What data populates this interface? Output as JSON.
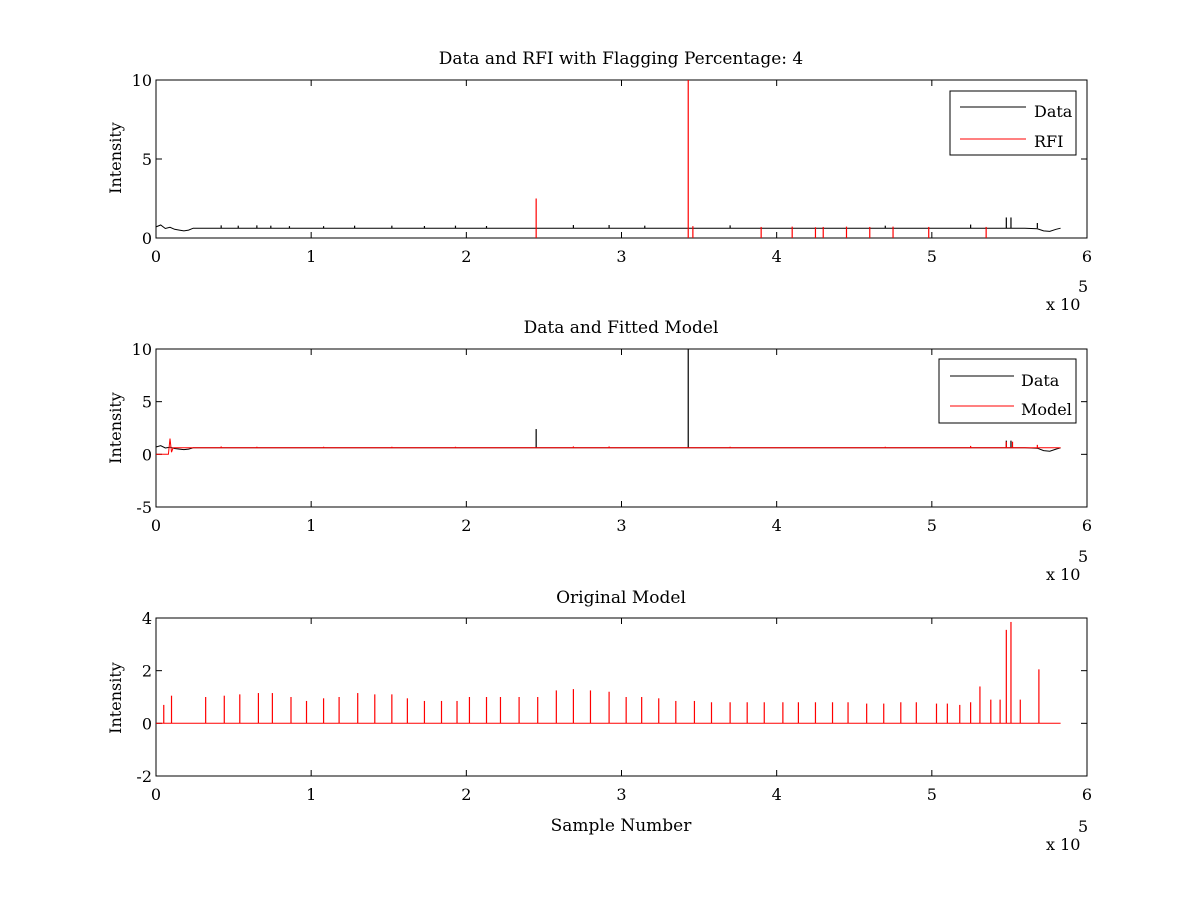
{
  "chart_data": [
    {
      "type": "line",
      "title": "Data and RFI with Flagging Percentage: 4",
      "xlabel": "",
      "ylabel": "Intensity",
      "xlim": [
        0,
        600000
      ],
      "ylim": [
        0,
        10
      ],
      "xticks": [
        0,
        1,
        2,
        3,
        4,
        5,
        6
      ],
      "yticks": [
        0,
        5,
        10
      ],
      "x_exponent_label": "x 10",
      "x_exponent_power": "5",
      "legend": {
        "entries": [
          "Data",
          "RFI"
        ],
        "placement": "top-right"
      },
      "colors": {
        "Data": "#000000",
        "RFI": "#ff0000"
      },
      "series": [
        {
          "name": "Data",
          "baseline": 0.62,
          "x": [
            0,
            3000,
            6000,
            9000,
            12000,
            15000,
            18000,
            21000,
            24000,
            30000,
            100000,
            200000,
            300000,
            400000,
            500000,
            560000,
            568000,
            572000,
            576000,
            580000,
            583000
          ],
          "y": [
            0.7,
            0.82,
            0.6,
            0.68,
            0.55,
            0.5,
            0.45,
            0.5,
            0.62,
            0.62,
            0.62,
            0.62,
            0.62,
            0.62,
            0.62,
            0.62,
            0.58,
            0.45,
            0.42,
            0.55,
            0.62
          ],
          "spikes": [
            {
              "x": 42000,
              "y": 0.8
            },
            {
              "x": 53000,
              "y": 0.78
            },
            {
              "x": 65000,
              "y": 0.8
            },
            {
              "x": 74000,
              "y": 0.78
            },
            {
              "x": 86000,
              "y": 0.75
            },
            {
              "x": 108000,
              "y": 0.75
            },
            {
              "x": 128000,
              "y": 0.78
            },
            {
              "x": 152000,
              "y": 0.78
            },
            {
              "x": 173000,
              "y": 0.76
            },
            {
              "x": 193000,
              "y": 0.78
            },
            {
              "x": 213000,
              "y": 0.76
            },
            {
              "x": 269000,
              "y": 0.82
            },
            {
              "x": 292000,
              "y": 0.82
            },
            {
              "x": 315000,
              "y": 0.78
            },
            {
              "x": 370000,
              "y": 0.8
            },
            {
              "x": 470000,
              "y": 0.78
            },
            {
              "x": 525000,
              "y": 0.85
            },
            {
              "x": 548000,
              "y": 1.3
            },
            {
              "x": 551000,
              "y": 1.3
            },
            {
              "x": 568000,
              "y": 0.95
            }
          ]
        },
        {
          "name": "RFI",
          "spikes": [
            {
              "x": 245000,
              "y": 2.5
            },
            {
              "x": 343000,
              "y": 10.0
            },
            {
              "x": 346000,
              "y": 0.75
            },
            {
              "x": 390000,
              "y": 0.7
            },
            {
              "x": 410000,
              "y": 0.72
            },
            {
              "x": 425000,
              "y": 0.68
            },
            {
              "x": 430000,
              "y": 0.7
            },
            {
              "x": 445000,
              "y": 0.72
            },
            {
              "x": 460000,
              "y": 0.7
            },
            {
              "x": 475000,
              "y": 0.72
            },
            {
              "x": 498000,
              "y": 0.7
            },
            {
              "x": 535000,
              "y": 0.7
            }
          ]
        }
      ]
    },
    {
      "type": "line",
      "title": "Data and Fitted Model",
      "xlabel": "",
      "ylabel": "Intensity",
      "xlim": [
        0,
        600000
      ],
      "ylim": [
        -5,
        10
      ],
      "xticks": [
        0,
        1,
        2,
        3,
        4,
        5,
        6
      ],
      "yticks": [
        -5,
        0,
        5,
        10
      ],
      "x_exponent_label": "x 10",
      "x_exponent_power": "5",
      "legend": {
        "entries": [
          "Data",
          "Model"
        ],
        "placement": "top-right"
      },
      "colors": {
        "Data": "#000000",
        "Model": "#ff0000"
      },
      "series": [
        {
          "name": "Data",
          "baseline": 0.62,
          "x": [
            0,
            3000,
            6000,
            9000,
            12000,
            15000,
            18000,
            21000,
            24000,
            30000,
            300000,
            560000,
            568000,
            572000,
            576000,
            580000,
            583000
          ],
          "y": [
            0.7,
            0.82,
            0.6,
            0.68,
            0.55,
            0.5,
            0.45,
            0.5,
            0.62,
            0.62,
            0.62,
            0.62,
            0.58,
            0.35,
            0.3,
            0.5,
            0.62
          ],
          "spikes": [
            {
              "x": 245000,
              "y": 2.4
            },
            {
              "x": 343000,
              "y": 10.0
            },
            {
              "x": 548000,
              "y": 1.3
            },
            {
              "x": 551000,
              "y": 1.3
            }
          ]
        },
        {
          "name": "Model",
          "baseline": 0.62,
          "x": [
            0,
            4000,
            5000,
            8000,
            9000,
            10000,
            11000,
            12000,
            24000,
            583000
          ],
          "y": [
            0.0,
            0.0,
            0.0,
            0.0,
            1.5,
            0.2,
            0.62,
            0.62,
            0.62,
            0.62
          ],
          "spikes": [
            {
              "x": 42000,
              "y": 0.75
            },
            {
              "x": 65000,
              "y": 0.72
            },
            {
              "x": 108000,
              "y": 0.72
            },
            {
              "x": 152000,
              "y": 0.72
            },
            {
              "x": 193000,
              "y": 0.72
            },
            {
              "x": 269000,
              "y": 0.75
            },
            {
              "x": 292000,
              "y": 0.75
            },
            {
              "x": 370000,
              "y": 0.72
            },
            {
              "x": 470000,
              "y": 0.72
            },
            {
              "x": 525000,
              "y": 0.8
            },
            {
              "x": 548000,
              "y": 1.2
            },
            {
              "x": 552000,
              "y": 1.2
            },
            {
              "x": 568000,
              "y": 0.9
            }
          ]
        }
      ]
    },
    {
      "type": "line",
      "title": "Original Model",
      "xlabel": "Sample Number",
      "ylabel": "Intensity",
      "xlim": [
        0,
        600000
      ],
      "ylim": [
        -2,
        4
      ],
      "xticks": [
        0,
        1,
        2,
        3,
        4,
        5,
        6
      ],
      "yticks": [
        -2,
        0,
        2,
        4
      ],
      "x_exponent_label": "x 10",
      "x_exponent_power": "5",
      "legend": null,
      "colors": {
        "model": "#ff0000"
      },
      "series": [
        {
          "color": "#ff0000",
          "baseline": 0.0,
          "x": [
            0,
            583000
          ],
          "y": [
            0,
            0
          ],
          "spikes": [
            {
              "x": 5000,
              "y": 0.7
            },
            {
              "x": 10000,
              "y": 1.05
            },
            {
              "x": 32000,
              "y": 1.0
            },
            {
              "x": 44000,
              "y": 1.05
            },
            {
              "x": 54000,
              "y": 1.1
            },
            {
              "x": 66000,
              "y": 1.15
            },
            {
              "x": 75000,
              "y": 1.15
            },
            {
              "x": 87000,
              "y": 1.0
            },
            {
              "x": 97000,
              "y": 0.85
            },
            {
              "x": 108000,
              "y": 0.95
            },
            {
              "x": 118000,
              "y": 1.0
            },
            {
              "x": 130000,
              "y": 1.15
            },
            {
              "x": 141000,
              "y": 1.1
            },
            {
              "x": 152000,
              "y": 1.1
            },
            {
              "x": 162000,
              "y": 0.95
            },
            {
              "x": 173000,
              "y": 0.85
            },
            {
              "x": 184000,
              "y": 0.85
            },
            {
              "x": 194000,
              "y": 0.85
            },
            {
              "x": 202000,
              "y": 1.0
            },
            {
              "x": 213000,
              "y": 1.0
            },
            {
              "x": 222000,
              "y": 1.0
            },
            {
              "x": 234000,
              "y": 1.0
            },
            {
              "x": 246000,
              "y": 1.0
            },
            {
              "x": 258000,
              "y": 1.25
            },
            {
              "x": 269000,
              "y": 1.3
            },
            {
              "x": 280000,
              "y": 1.25
            },
            {
              "x": 292000,
              "y": 1.2
            },
            {
              "x": 303000,
              "y": 1.0
            },
            {
              "x": 313000,
              "y": 1.0
            },
            {
              "x": 324000,
              "y": 0.95
            },
            {
              "x": 335000,
              "y": 0.85
            },
            {
              "x": 347000,
              "y": 0.85
            },
            {
              "x": 358000,
              "y": 0.8
            },
            {
              "x": 370000,
              "y": 0.8
            },
            {
              "x": 381000,
              "y": 0.8
            },
            {
              "x": 392000,
              "y": 0.8
            },
            {
              "x": 404000,
              "y": 0.8
            },
            {
              "x": 414000,
              "y": 0.8
            },
            {
              "x": 425000,
              "y": 0.8
            },
            {
              "x": 436000,
              "y": 0.8
            },
            {
              "x": 446000,
              "y": 0.8
            },
            {
              "x": 458000,
              "y": 0.75
            },
            {
              "x": 469000,
              "y": 0.75
            },
            {
              "x": 480000,
              "y": 0.8
            },
            {
              "x": 490000,
              "y": 0.8
            },
            {
              "x": 503000,
              "y": 0.75
            },
            {
              "x": 510000,
              "y": 0.75
            },
            {
              "x": 518000,
              "y": 0.7
            },
            {
              "x": 525000,
              "y": 0.8
            },
            {
              "x": 531000,
              "y": 1.4
            },
            {
              "x": 538000,
              "y": 0.9
            },
            {
              "x": 544000,
              "y": 0.9
            },
            {
              "x": 548000,
              "y": 3.55
            },
            {
              "x": 551000,
              "y": 3.85
            },
            {
              "x": 557000,
              "y": 0.9
            },
            {
              "x": 569000,
              "y": 2.05
            }
          ]
        }
      ]
    }
  ]
}
